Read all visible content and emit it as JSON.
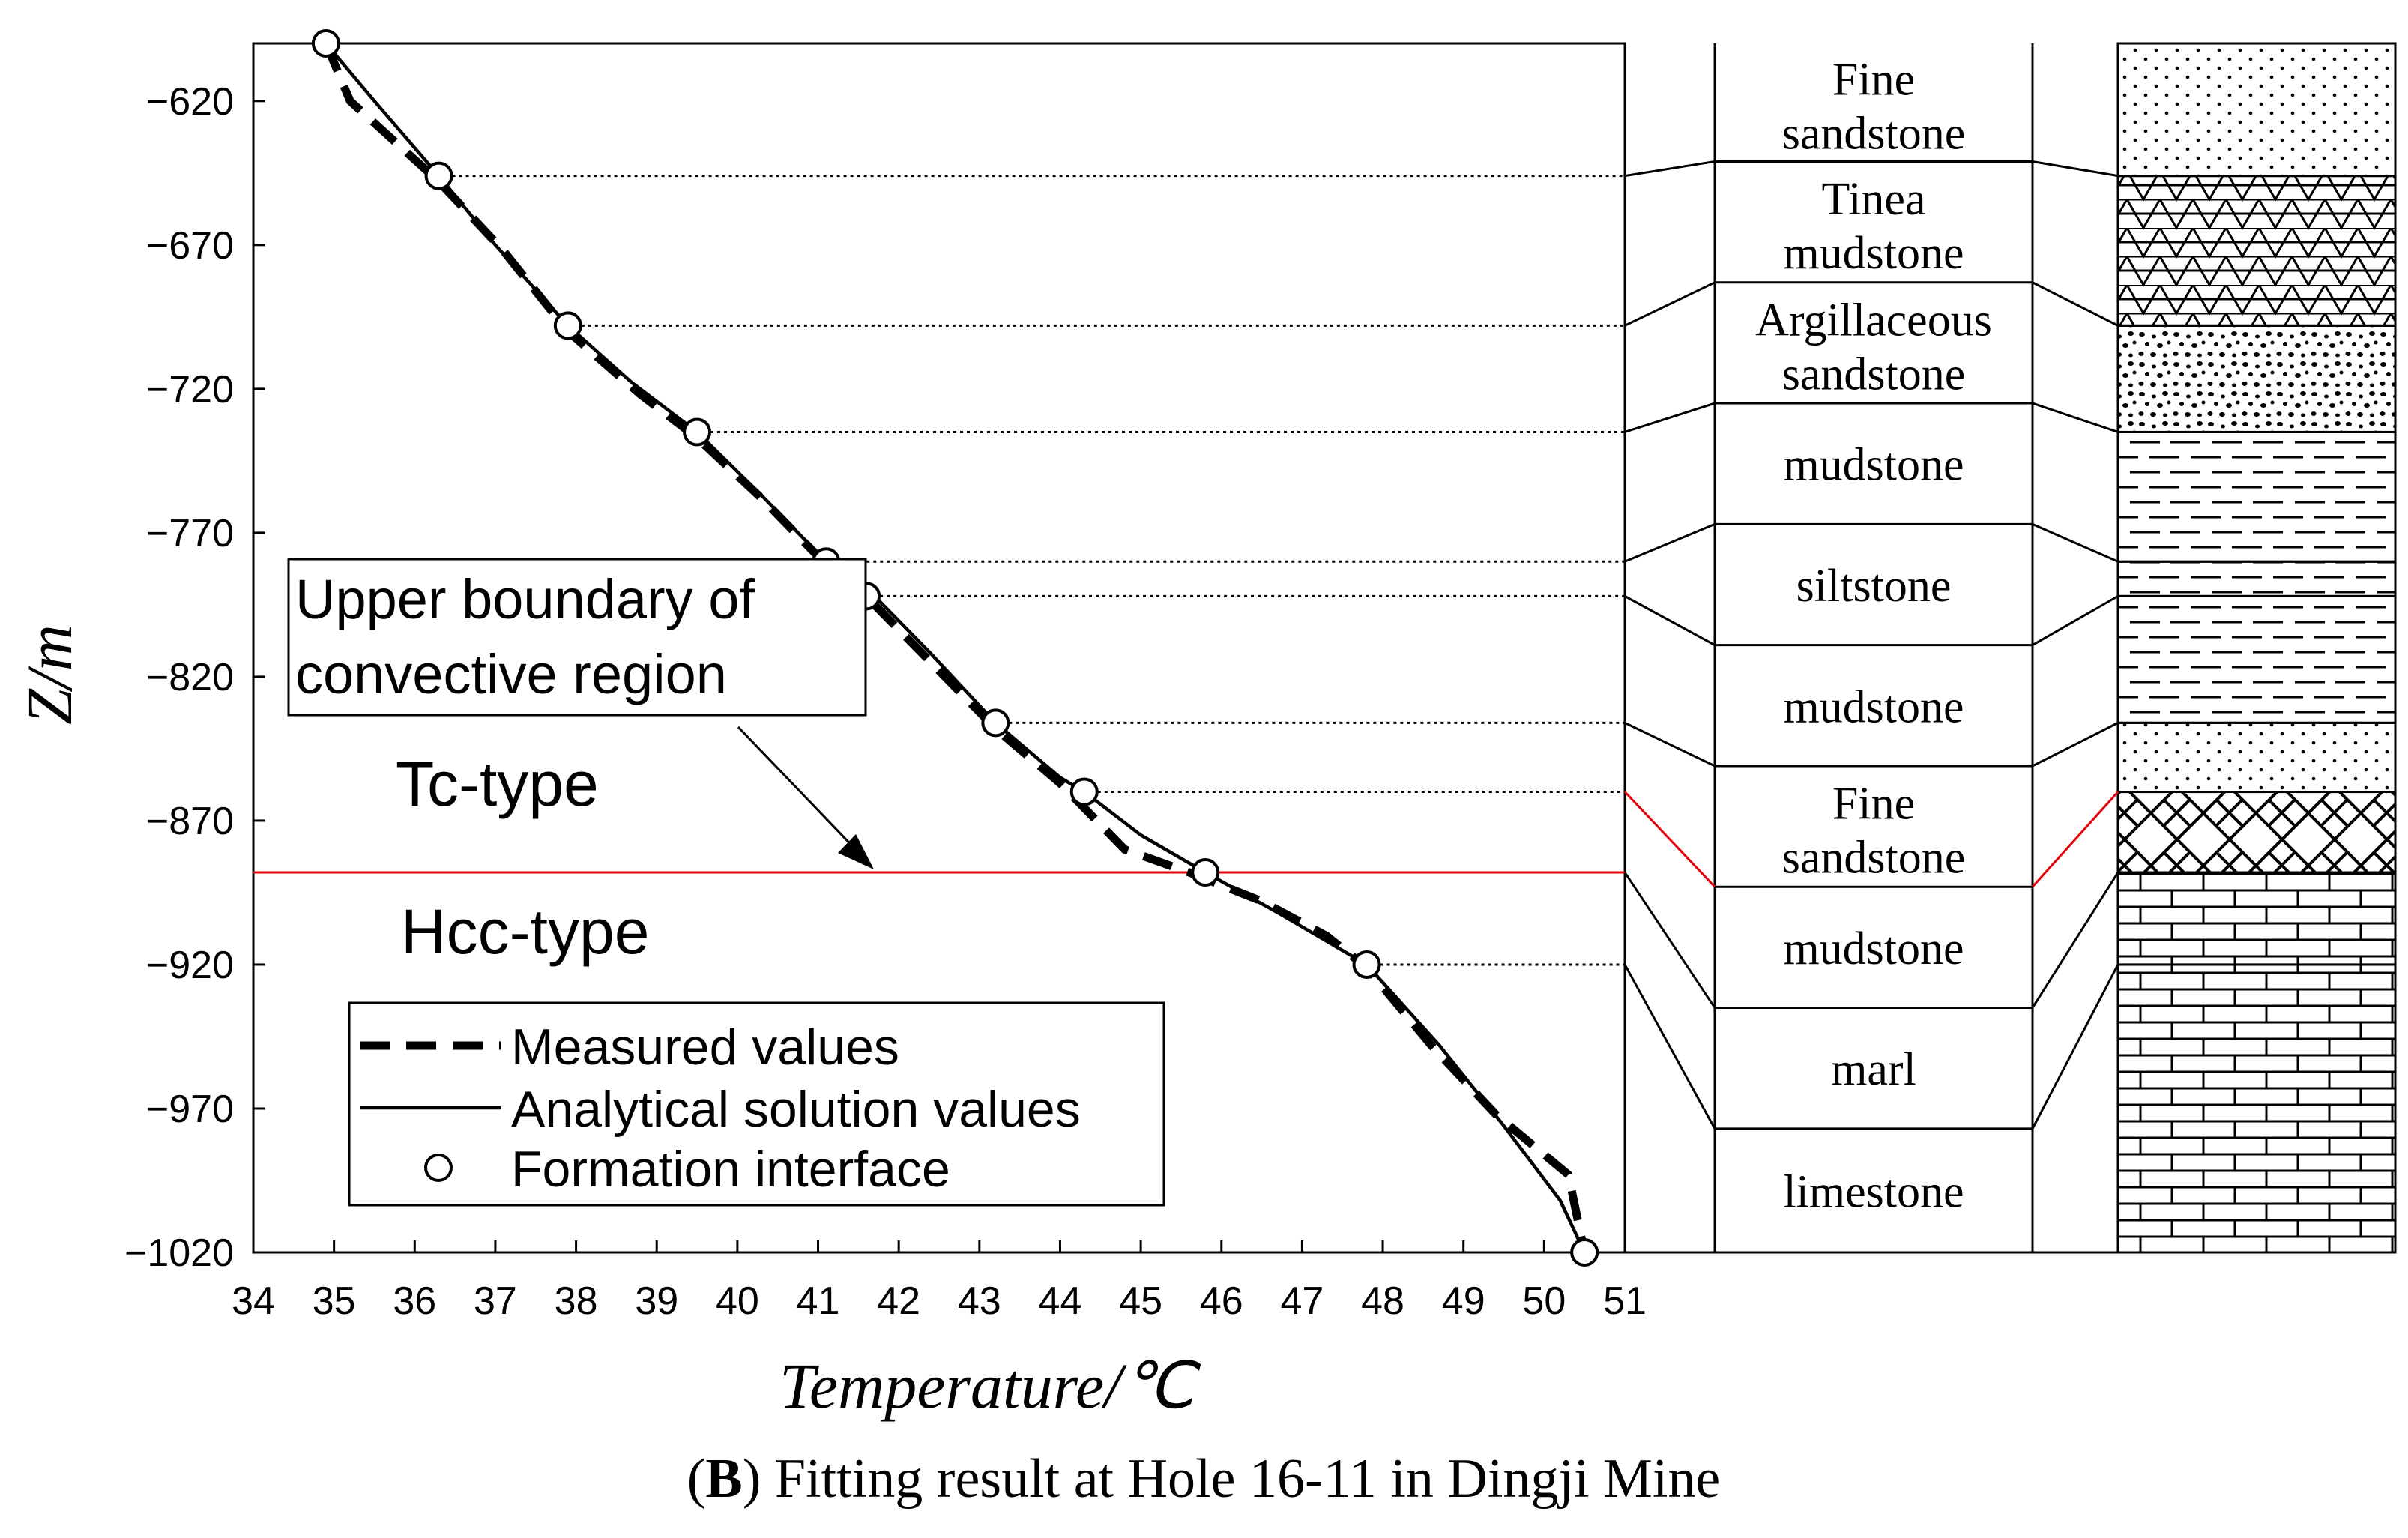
{
  "chart_data": {
    "type": "line",
    "caption": {
      "label": "B",
      "text": ") Fitting result at Hole 16-11 in Dingji Mine",
      "open": "("
    },
    "xlabel": "Temperature/℃",
    "xlabel_main": "Temperature/",
    "xlabel_unit": "℃",
    "ylabel": "Z/m",
    "xlim": [
      34,
      51
    ],
    "ylim": [
      -1020,
      -600
    ],
    "x_ticks": [
      34,
      35,
      36,
      37,
      38,
      39,
      40,
      41,
      42,
      43,
      44,
      45,
      46,
      47,
      48,
      49,
      50,
      51
    ],
    "y_ticks": [
      -620,
      -670,
      -720,
      -770,
      -820,
      -870,
      -920,
      -970,
      -1020
    ],
    "y_tick_labels": [
      "−620",
      "−670",
      "−720",
      "−770",
      "−820",
      "−870",
      "−920",
      "−970",
      "−1020"
    ],
    "series": [
      {
        "name": "Measured values",
        "style": "dashed",
        "x": [
          34.9,
          35.2,
          36.3,
          37.1,
          37.9,
          38.8,
          39.5,
          40.3,
          41.1,
          41.7,
          42.4,
          43.2,
          44.0,
          44.8,
          45.6,
          46.5,
          47.3,
          47.8,
          48.6,
          49.4,
          50.3,
          50.5
        ],
        "y": [
          -600,
          -620,
          -648,
          -672,
          -700,
          -722,
          -737,
          -758,
          -781,
          -795,
          -815,
          -838,
          -857,
          -880,
          -888,
          -898,
          -910,
          -921,
          -948,
          -972,
          -993,
          -1020
        ]
      },
      {
        "name": "Analytical solution values",
        "style": "solid",
        "x": [
          34.9,
          35.5,
          36.3,
          37.0,
          37.9,
          38.7,
          39.5,
          40.3,
          41.1,
          41.7,
          42.4,
          43.2,
          44.0,
          44.3,
          45.0,
          45.8,
          46.7,
          47.8,
          48.7,
          49.5,
          50.2,
          50.5
        ],
        "y": [
          -600,
          -620,
          -646,
          -670,
          -698,
          -718,
          -735,
          -757,
          -780,
          -792,
          -812,
          -836,
          -855,
          -860,
          -875,
          -888,
          -902,
          -920,
          -948,
          -976,
          -1002,
          -1020
        ]
      }
    ],
    "formation_interface": {
      "name": "Formation interface",
      "x": [
        34.9,
        36.3,
        37.9,
        39.5,
        41.1,
        41.6,
        43.2,
        44.3,
        45.8,
        47.8,
        50.5
      ],
      "y": [
        -600,
        -646,
        -698,
        -735,
        -780,
        -792,
        -836,
        -860,
        -888,
        -920,
        -1020
      ]
    },
    "convective_boundary": {
      "y": -888,
      "color": "#e8000b"
    },
    "annotations": {
      "box": [
        "Upper boundary of",
        "convective region"
      ],
      "upper_label": "Tc-type",
      "lower_label": "Hcc-type"
    },
    "legend": {
      "position": "bottom-center",
      "entries": [
        "Measured values",
        "Analytical solution values",
        "Formation interface"
      ]
    },
    "strata": [
      {
        "name": [
          "Fine",
          "sandstone"
        ],
        "top": -600,
        "bottom": -641,
        "pattern": "dots"
      },
      {
        "name": [
          "Tinea",
          "mudstone"
        ],
        "top": -641,
        "bottom": -683,
        "pattern": "triangles"
      },
      {
        "name": [
          "Argillaceous",
          "sandstone"
        ],
        "top": -683,
        "bottom": -725,
        "pattern": "speckles"
      },
      {
        "name": [
          "mudstone"
        ],
        "top": -725,
        "bottom": -767,
        "pattern": "dashes"
      },
      {
        "name": [
          "siltstone"
        ],
        "top": -767,
        "bottom": -809,
        "pattern": "dot-dash"
      },
      {
        "name": [
          "mudstone"
        ],
        "top": -809,
        "bottom": -851,
        "pattern": "dashes"
      },
      {
        "name": [
          "Fine",
          "sandstone"
        ],
        "top": -851,
        "bottom": -893,
        "pattern": "dots"
      },
      {
        "name": [
          "mudstone"
        ],
        "top": -893,
        "bottom": -935,
        "pattern": "herringbone"
      },
      {
        "name": [
          "marl"
        ],
        "top": -935,
        "bottom": -977,
        "pattern": "bricks"
      },
      {
        "name": [
          "limestone"
        ],
        "top": -977,
        "bottom": -1020,
        "pattern": "bricks"
      }
    ]
  }
}
